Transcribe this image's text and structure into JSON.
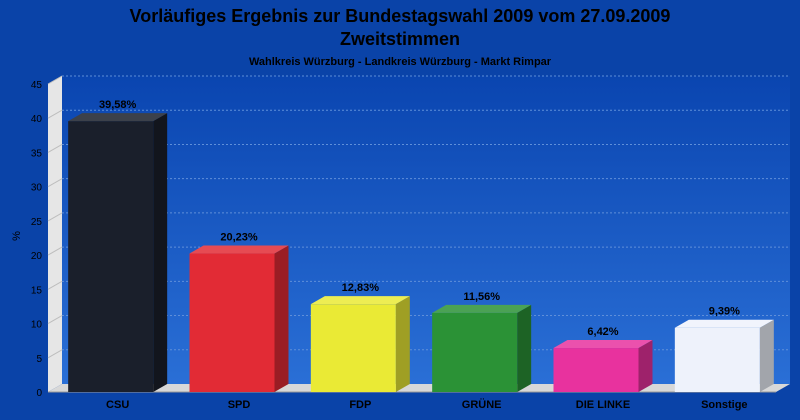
{
  "chart_data": {
    "type": "bar",
    "title": "Vorläufiges Ergebnis zur Bundestagswahl 2009 vom 27.09.2009",
    "title2": "Zweitstimmen",
    "subtitle": "Wahlkreis Würzburg - Landkreis Würzburg - Markt Rimpar",
    "ylabel": "%",
    "ylim": [
      0,
      45
    ],
    "yticks": [
      0,
      5,
      10,
      15,
      20,
      25,
      30,
      35,
      40,
      45
    ],
    "grid": true,
    "categories": [
      "CSU",
      "SPD",
      "FDP",
      "GRÜNE",
      "DIE LINKE",
      "Sonstige"
    ],
    "values": [
      39.58,
      20.23,
      12.83,
      11.56,
      6.42,
      9.39
    ],
    "value_labels": [
      "39,58%",
      "20,23%",
      "12,83%",
      "11,56%",
      "6,42%",
      "9,39%"
    ],
    "colors": [
      "#1a1f2b",
      "#e22b35",
      "#eaea35",
      "#2b9236",
      "#e8329e",
      "#eef2fb"
    ]
  },
  "colors": {
    "background": "#0a43a8",
    "plot_background": "#1a5dc8",
    "floor": "#d8d8d8"
  }
}
